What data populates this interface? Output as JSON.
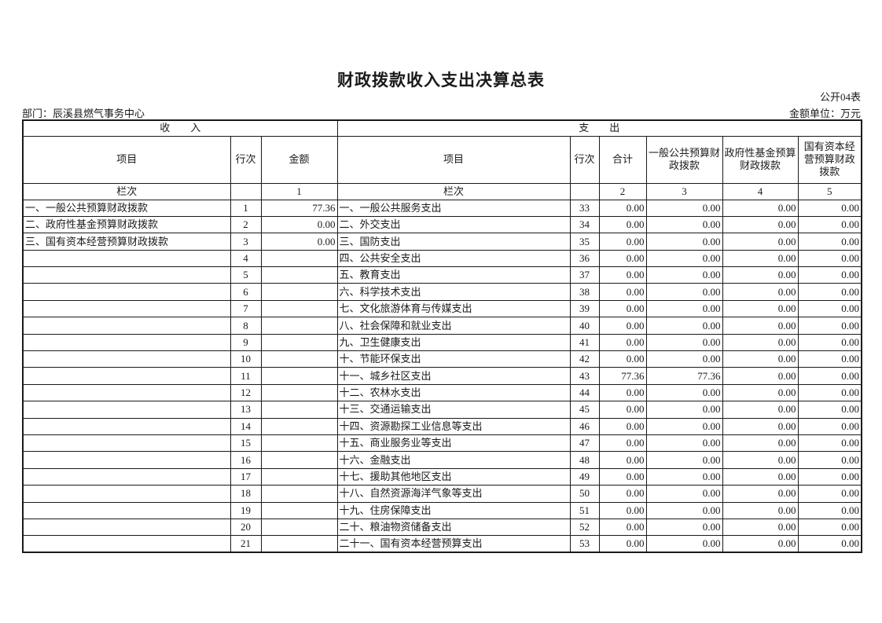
{
  "page": {
    "title": "财政拨款收入支出决算总表",
    "form_code": "公开04表",
    "department_label": "部门：辰溪县燃气事务中心",
    "unit_label": "金额单位：万元"
  },
  "table": {
    "income_banner": "收　　入",
    "expense_banner": "支　　出",
    "headers": {
      "income_item": "项目",
      "income_line": "行次",
      "income_amount": "金额",
      "expense_item": "项目",
      "expense_line": "行次",
      "expense_total": "合计",
      "expense_general": "一般公共预算财政拨款",
      "expense_gov_fund": "政府性基金预算财政拨款",
      "expense_state_capital": "国有资本经营预算财政拨款"
    },
    "column_index_row": {
      "income_label": "栏次",
      "income_line": "",
      "income_amount": "1",
      "expense_label": "栏次",
      "expense_line": "",
      "expense_total": "2",
      "expense_general": "3",
      "expense_gov_fund": "4",
      "expense_state_capital": "5"
    },
    "rows": [
      {
        "income_item": "一、一般公共预算财政拨款",
        "income_line": "1",
        "income_amount": "77.36",
        "expense_item": "一、一般公共服务支出",
        "expense_line": "33",
        "expense_total": "0.00",
        "expense_general": "0.00",
        "expense_gov_fund": "0.00",
        "expense_state_capital": "0.00"
      },
      {
        "income_item": "二、政府性基金预算财政拨款",
        "income_line": "2",
        "income_amount": "0.00",
        "expense_item": "二、外交支出",
        "expense_line": "34",
        "expense_total": "0.00",
        "expense_general": "0.00",
        "expense_gov_fund": "0.00",
        "expense_state_capital": "0.00"
      },
      {
        "income_item": "三、国有资本经营预算财政拨款",
        "income_line": "3",
        "income_amount": "0.00",
        "expense_item": "三、国防支出",
        "expense_line": "35",
        "expense_total": "0.00",
        "expense_general": "0.00",
        "expense_gov_fund": "0.00",
        "expense_state_capital": "0.00"
      },
      {
        "income_item": "",
        "income_line": "4",
        "income_amount": "",
        "expense_item": "四、公共安全支出",
        "expense_line": "36",
        "expense_total": "0.00",
        "expense_general": "0.00",
        "expense_gov_fund": "0.00",
        "expense_state_capital": "0.00"
      },
      {
        "income_item": "",
        "income_line": "5",
        "income_amount": "",
        "expense_item": "五、教育支出",
        "expense_line": "37",
        "expense_total": "0.00",
        "expense_general": "0.00",
        "expense_gov_fund": "0.00",
        "expense_state_capital": "0.00"
      },
      {
        "income_item": "",
        "income_line": "6",
        "income_amount": "",
        "expense_item": "六、科学技术支出",
        "expense_line": "38",
        "expense_total": "0.00",
        "expense_general": "0.00",
        "expense_gov_fund": "0.00",
        "expense_state_capital": "0.00"
      },
      {
        "income_item": "",
        "income_line": "7",
        "income_amount": "",
        "expense_item": "七、文化旅游体育与传媒支出",
        "expense_line": "39",
        "expense_total": "0.00",
        "expense_general": "0.00",
        "expense_gov_fund": "0.00",
        "expense_state_capital": "0.00"
      },
      {
        "income_item": "",
        "income_line": "8",
        "income_amount": "",
        "expense_item": "八、社会保障和就业支出",
        "expense_line": "40",
        "expense_total": "0.00",
        "expense_general": "0.00",
        "expense_gov_fund": "0.00",
        "expense_state_capital": "0.00"
      },
      {
        "income_item": "",
        "income_line": "9",
        "income_amount": "",
        "expense_item": "九、卫生健康支出",
        "expense_line": "41",
        "expense_total": "0.00",
        "expense_general": "0.00",
        "expense_gov_fund": "0.00",
        "expense_state_capital": "0.00"
      },
      {
        "income_item": "",
        "income_line": "10",
        "income_amount": "",
        "expense_item": "十、节能环保支出",
        "expense_line": "42",
        "expense_total": "0.00",
        "expense_general": "0.00",
        "expense_gov_fund": "0.00",
        "expense_state_capital": "0.00"
      },
      {
        "income_item": "",
        "income_line": "11",
        "income_amount": "",
        "expense_item": "十一、城乡社区支出",
        "expense_line": "43",
        "expense_total": "77.36",
        "expense_general": "77.36",
        "expense_gov_fund": "0.00",
        "expense_state_capital": "0.00"
      },
      {
        "income_item": "",
        "income_line": "12",
        "income_amount": "",
        "expense_item": "十二、农林水支出",
        "expense_line": "44",
        "expense_total": "0.00",
        "expense_general": "0.00",
        "expense_gov_fund": "0.00",
        "expense_state_capital": "0.00"
      },
      {
        "income_item": "",
        "income_line": "13",
        "income_amount": "",
        "expense_item": "十三、交通运输支出",
        "expense_line": "45",
        "expense_total": "0.00",
        "expense_general": "0.00",
        "expense_gov_fund": "0.00",
        "expense_state_capital": "0.00"
      },
      {
        "income_item": "",
        "income_line": "14",
        "income_amount": "",
        "expense_item": "十四、资源勘探工业信息等支出",
        "expense_line": "46",
        "expense_total": "0.00",
        "expense_general": "0.00",
        "expense_gov_fund": "0.00",
        "expense_state_capital": "0.00"
      },
      {
        "income_item": "",
        "income_line": "15",
        "income_amount": "",
        "expense_item": "十五、商业服务业等支出",
        "expense_line": "47",
        "expense_total": "0.00",
        "expense_general": "0.00",
        "expense_gov_fund": "0.00",
        "expense_state_capital": "0.00"
      },
      {
        "income_item": "",
        "income_line": "16",
        "income_amount": "",
        "expense_item": "十六、金融支出",
        "expense_line": "48",
        "expense_total": "0.00",
        "expense_general": "0.00",
        "expense_gov_fund": "0.00",
        "expense_state_capital": "0.00"
      },
      {
        "income_item": "",
        "income_line": "17",
        "income_amount": "",
        "expense_item": "十七、援助其他地区支出",
        "expense_line": "49",
        "expense_total": "0.00",
        "expense_general": "0.00",
        "expense_gov_fund": "0.00",
        "expense_state_capital": "0.00"
      },
      {
        "income_item": "",
        "income_line": "18",
        "income_amount": "",
        "expense_item": "十八、自然资源海洋气象等支出",
        "expense_line": "50",
        "expense_total": "0.00",
        "expense_general": "0.00",
        "expense_gov_fund": "0.00",
        "expense_state_capital": "0.00"
      },
      {
        "income_item": "",
        "income_line": "19",
        "income_amount": "",
        "expense_item": "十九、住房保障支出",
        "expense_line": "51",
        "expense_total": "0.00",
        "expense_general": "0.00",
        "expense_gov_fund": "0.00",
        "expense_state_capital": "0.00"
      },
      {
        "income_item": "",
        "income_line": "20",
        "income_amount": "",
        "expense_item": "二十、粮油物资储备支出",
        "expense_line": "52",
        "expense_total": "0.00",
        "expense_general": "0.00",
        "expense_gov_fund": "0.00",
        "expense_state_capital": "0.00"
      },
      {
        "income_item": "",
        "income_line": "21",
        "income_amount": "",
        "expense_item": "二十一、国有资本经营预算支出",
        "expense_line": "53",
        "expense_total": "0.00",
        "expense_general": "0.00",
        "expense_gov_fund": "0.00",
        "expense_state_capital": "0.00"
      }
    ]
  }
}
